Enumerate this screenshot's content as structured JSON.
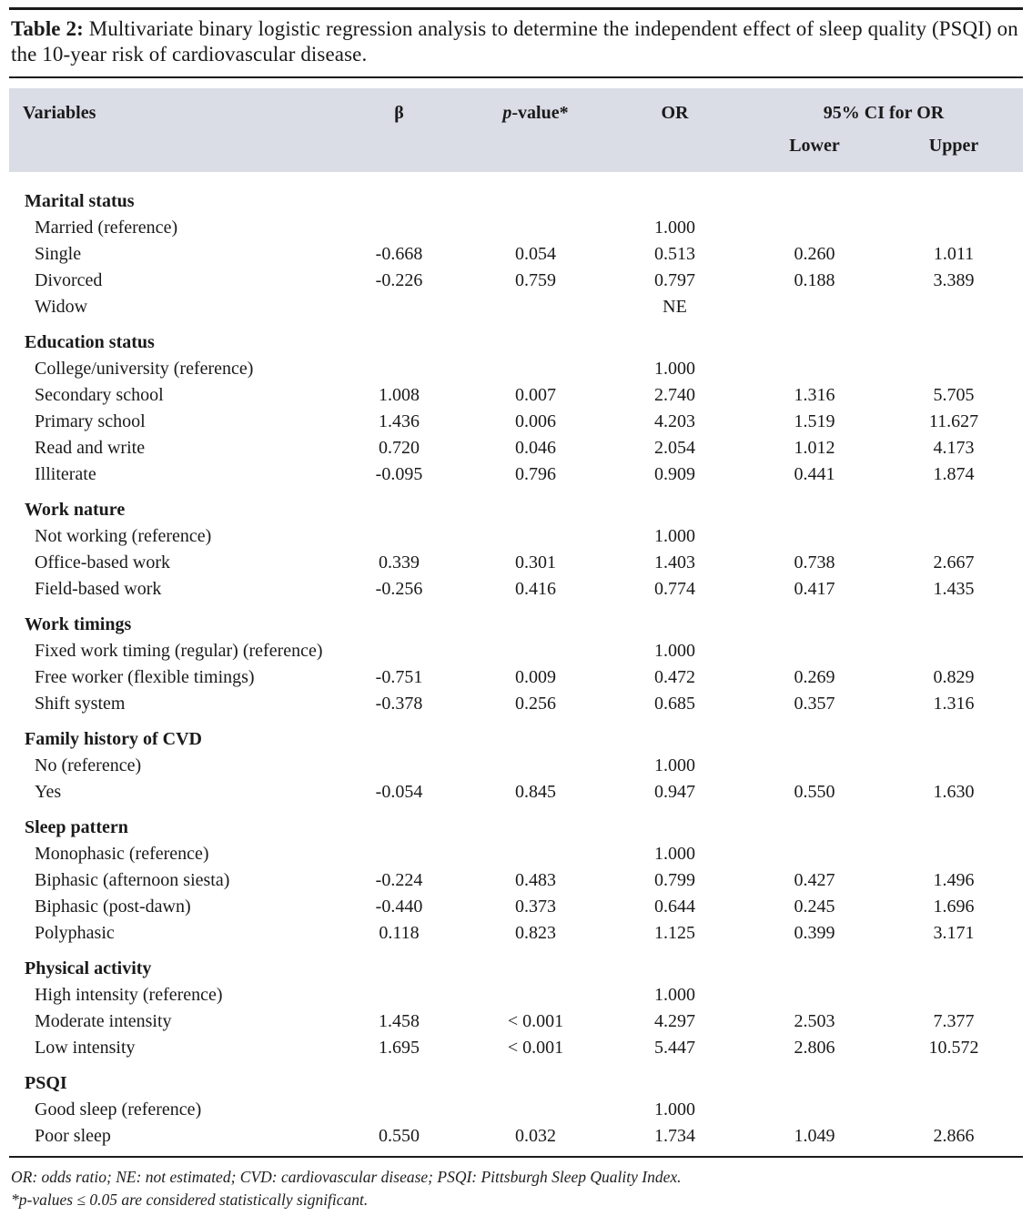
{
  "caption": {
    "label": "Table 2:",
    "text": " Multivariate binary logistic regression analysis to determine the independent effect of sleep quality (PSQI) on the 10-year risk of cardiovascular disease."
  },
  "colors": {
    "header_band_bg": "#dadce6",
    "text": "#1a1a1a",
    "rule": "#1b1b1b"
  },
  "header": {
    "variables": "Variables",
    "beta": "β",
    "p_italic": "p",
    "p_rest": "-value*",
    "or": "OR",
    "ci": "95% CI for OR",
    "lower": "Lower",
    "upper": "Upper"
  },
  "chart_data": {
    "type": "table",
    "title": "Table 2: Multivariate binary logistic regression analysis to determine the independent effect of sleep quality (PSQI) on the 10-year risk of cardiovascular disease.",
    "columns": [
      "Variables",
      "β",
      "p-value*",
      "OR",
      "95% CI for OR Lower",
      "95% CI for OR Upper"
    ],
    "sections": [
      {
        "name": "Marital status",
        "rows": [
          {
            "label": "Married (reference)",
            "beta": "",
            "p": "",
            "or": "1.000",
            "lower": "",
            "upper": ""
          },
          {
            "label": "Single",
            "beta": "-0.668",
            "p": "0.054",
            "or": "0.513",
            "lower": "0.260",
            "upper": "1.011"
          },
          {
            "label": "Divorced",
            "beta": "-0.226",
            "p": "0.759",
            "or": "0.797",
            "lower": "0.188",
            "upper": "3.389"
          },
          {
            "label": "Widow",
            "beta": "",
            "p": "",
            "or": "NE",
            "lower": "",
            "upper": ""
          }
        ]
      },
      {
        "name": "Education status",
        "rows": [
          {
            "label": "College/university (reference)",
            "beta": "",
            "p": "",
            "or": "1.000",
            "lower": "",
            "upper": ""
          },
          {
            "label": "Secondary school",
            "beta": "1.008",
            "p": "0.007",
            "or": "2.740",
            "lower": "1.316",
            "upper": "5.705"
          },
          {
            "label": "Primary school",
            "beta": "1.436",
            "p": "0.006",
            "or": "4.203",
            "lower": "1.519",
            "upper": "11.627"
          },
          {
            "label": "Read and write",
            "beta": "0.720",
            "p": "0.046",
            "or": "2.054",
            "lower": "1.012",
            "upper": "4.173"
          },
          {
            "label": "Illiterate",
            "beta": "-0.095",
            "p": "0.796",
            "or": "0.909",
            "lower": "0.441",
            "upper": "1.874"
          }
        ]
      },
      {
        "name": "Work nature",
        "rows": [
          {
            "label": "Not working (reference)",
            "beta": "",
            "p": "",
            "or": "1.000",
            "lower": "",
            "upper": ""
          },
          {
            "label": "Office-based work",
            "beta": "0.339",
            "p": "0.301",
            "or": "1.403",
            "lower": "0.738",
            "upper": "2.667"
          },
          {
            "label": "Field-based work",
            "beta": "-0.256",
            "p": "0.416",
            "or": "0.774",
            "lower": "0.417",
            "upper": "1.435"
          }
        ]
      },
      {
        "name": "Work timings",
        "rows": [
          {
            "label": "Fixed work timing (regular) (reference)",
            "beta": "",
            "p": "",
            "or": "1.000",
            "lower": "",
            "upper": ""
          },
          {
            "label": "Free worker (flexible timings)",
            "beta": "-0.751",
            "p": "0.009",
            "or": "0.472",
            "lower": "0.269",
            "upper": "0.829"
          },
          {
            "label": "Shift system",
            "beta": "-0.378",
            "p": "0.256",
            "or": "0.685",
            "lower": "0.357",
            "upper": "1.316"
          }
        ]
      },
      {
        "name": "Family history of CVD",
        "rows": [
          {
            "label": "No (reference)",
            "beta": "",
            "p": "",
            "or": "1.000",
            "lower": "",
            "upper": ""
          },
          {
            "label": "Yes",
            "beta": "-0.054",
            "p": "0.845",
            "or": "0.947",
            "lower": "0.550",
            "upper": "1.630"
          }
        ]
      },
      {
        "name": "Sleep pattern",
        "rows": [
          {
            "label": "Monophasic (reference)",
            "beta": "",
            "p": "",
            "or": "1.000",
            "lower": "",
            "upper": ""
          },
          {
            "label": "Biphasic (afternoon siesta)",
            "beta": "-0.224",
            "p": "0.483",
            "or": "0.799",
            "lower": "0.427",
            "upper": "1.496"
          },
          {
            "label": "Biphasic (post-dawn)",
            "beta": "-0.440",
            "p": "0.373",
            "or": "0.644",
            "lower": "0.245",
            "upper": "1.696"
          },
          {
            "label": "Polyphasic",
            "beta": "0.118",
            "p": "0.823",
            "or": "1.125",
            "lower": "0.399",
            "upper": "3.171"
          }
        ]
      },
      {
        "name": "Physical activity",
        "rows": [
          {
            "label": "High intensity (reference)",
            "beta": "",
            "p": "",
            "or": "1.000",
            "lower": "",
            "upper": ""
          },
          {
            "label": "Moderate intensity",
            "beta": "1.458",
            "p": "< 0.001",
            "or": "4.297",
            "lower": "2.503",
            "upper": "7.377"
          },
          {
            "label": "Low intensity",
            "beta": "1.695",
            "p": "< 0.001",
            "or": "5.447",
            "lower": "2.806",
            "upper": "10.572"
          }
        ]
      },
      {
        "name": "PSQI",
        "rows": [
          {
            "label": "Good sleep (reference)",
            "beta": "",
            "p": "",
            "or": "1.000",
            "lower": "",
            "upper": ""
          },
          {
            "label": "Poor sleep",
            "beta": "0.550",
            "p": "0.032",
            "or": "1.734",
            "lower": "1.049",
            "upper": "2.866"
          }
        ]
      }
    ]
  },
  "footnotes": [
    "OR: odds ratio; NE: not estimated; CVD: cardiovascular disease; PSQI: Pittsburgh Sleep Quality Index.",
    "*p-values ≤ 0.05 are considered statistically significant."
  ]
}
